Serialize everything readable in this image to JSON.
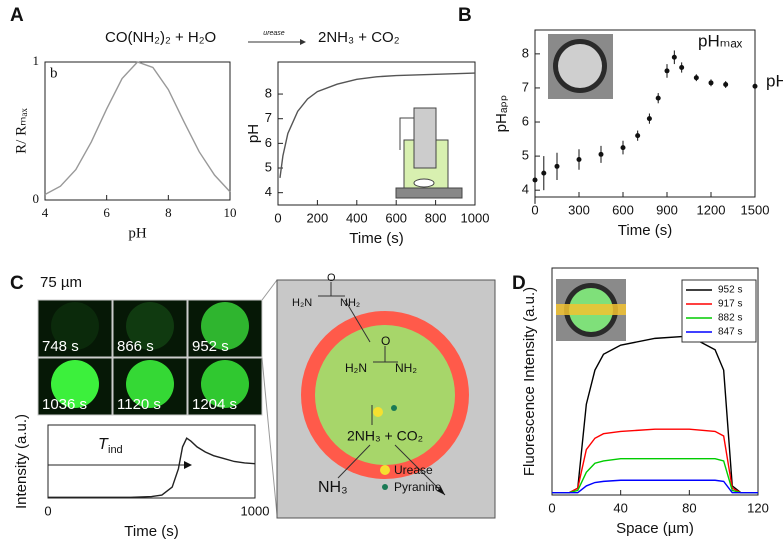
{
  "panel_labels": [
    "A",
    "B",
    "C",
    "D"
  ],
  "equation": {
    "left": "CO(NH₂)₂ + H₂O",
    "arrow": "urease",
    "right": "2NH₃  + CO₂"
  },
  "micrographs": {
    "scale_bar": "75 µm",
    "times": [
      "748 s",
      "866 s",
      "952 s",
      "1036 s",
      "1120 s",
      "1204 s"
    ]
  },
  "diagram": {
    "urea_out": [
      "H₂N",
      "O",
      "NH₂"
    ],
    "urea_in": [
      "H₂N",
      "O",
      "NH₂"
    ],
    "products": "2NH₃ + CO₂",
    "nh3": "NH₃",
    "urease": "Urease",
    "pyranine": "Pyranine"
  },
  "chart_data": [
    {
      "type": "line",
      "xlabel": "pH",
      "ylabel": "R/ Rₘₐₓ",
      "annotation": "b",
      "x": [
        4,
        4.5,
        5,
        5.5,
        6,
        6.5,
        7,
        7.5,
        8,
        8.5,
        9,
        9.5,
        10
      ],
      "series": [
        {
          "color": "#999999",
          "values": [
            0.04,
            0.1,
            0.22,
            0.42,
            0.66,
            0.88,
            1.0,
            0.96,
            0.8,
            0.57,
            0.35,
            0.18,
            0.06
          ]
        }
      ],
      "xlim": [
        4,
        10
      ],
      "xticks": [
        4,
        6,
        8,
        10
      ],
      "ylim": [
        0,
        1
      ],
      "yticks": [
        0,
        1
      ]
    },
    {
      "type": "line",
      "xlabel": "Time (s)",
      "ylabel": "pH",
      "x": [
        10,
        25,
        50,
        100,
        150,
        200,
        300,
        400,
        500,
        600,
        800,
        1000
      ],
      "series": [
        {
          "color": "#555555",
          "values": [
            4.6,
            5.5,
            6.4,
            7.3,
            7.8,
            8.1,
            8.4,
            8.6,
            8.7,
            8.75,
            8.8,
            8.85
          ]
        }
      ],
      "xlim": [
        0,
        1000
      ],
      "xticks": [
        0,
        200,
        400,
        600,
        800,
        1000
      ],
      "ylim": [
        3.5,
        9.3
      ],
      "yticks": [
        4,
        5,
        6,
        7,
        8
      ]
    },
    {
      "type": "scatter",
      "xlabel": "Time (s)",
      "ylabel": "pHₐₚₚ",
      "annotation": "pHₘₐₓ",
      "annotation2": "pH",
      "x": [
        0,
        60,
        150,
        300,
        450,
        600,
        700,
        780,
        840,
        900,
        950,
        1000,
        1100,
        1200,
        1300,
        1500
      ],
      "series": [
        {
          "color": "#111111",
          "values": [
            4.3,
            4.5,
            4.7,
            4.9,
            5.05,
            5.25,
            5.6,
            6.1,
            6.7,
            7.5,
            7.9,
            7.6,
            7.3,
            7.15,
            7.1,
            7.05
          ],
          "errors": [
            0.7,
            0.5,
            0.4,
            0.3,
            0.25,
            0.2,
            0.15,
            0.15,
            0.15,
            0.2,
            0.2,
            0.15,
            0.1,
            0.1,
            0.1,
            0.1
          ]
        }
      ],
      "xlim": [
        0,
        1500
      ],
      "xticks": [
        0,
        300,
        600,
        900,
        1200,
        1500
      ],
      "ylim": [
        3.8,
        8.7
      ],
      "yticks": [
        4,
        5,
        6,
        7,
        8
      ]
    },
    {
      "type": "line",
      "xlabel": "Time (s)",
      "ylabel": "Intensity (a.u.)",
      "annotation": {
        "main": "T",
        "sub": "ind"
      },
      "x": [
        0,
        100,
        200,
        300,
        400,
        500,
        550,
        600,
        630,
        650,
        670,
        690,
        720,
        760,
        800,
        850,
        900,
        950,
        1000
      ],
      "series": [
        {
          "color": "#222222",
          "values": [
            0.01,
            0.01,
            0.01,
            0.01,
            0.01,
            0.02,
            0.04,
            0.15,
            0.4,
            0.7,
            0.82,
            0.78,
            0.7,
            0.63,
            0.58,
            0.54,
            0.5,
            0.48,
            0.47
          ]
        }
      ],
      "xlim": [
        0,
        1000
      ],
      "xticks": [
        0,
        1000
      ],
      "ylim": [
        0,
        1
      ]
    },
    {
      "type": "line",
      "xlabel": "Space (µm)",
      "ylabel": "Fluorescence Intensity (a.u.)",
      "legend": "upper right",
      "x": [
        0,
        10,
        15,
        20,
        25,
        30,
        40,
        60,
        80,
        95,
        100,
        105,
        110,
        120
      ],
      "series": [
        {
          "name": "952 s",
          "color": "#000000",
          "values": [
            0.01,
            0.01,
            0.03,
            0.4,
            0.55,
            0.62,
            0.66,
            0.69,
            0.7,
            0.64,
            0.55,
            0.04,
            0.01,
            0.01
          ]
        },
        {
          "name": "917 s",
          "color": "#ff0000",
          "values": [
            0.01,
            0.01,
            0.03,
            0.2,
            0.25,
            0.27,
            0.28,
            0.29,
            0.29,
            0.28,
            0.26,
            0.03,
            0.01,
            0.01
          ]
        },
        {
          "name": "882 s",
          "color": "#00cc00",
          "values": [
            0.01,
            0.01,
            0.02,
            0.1,
            0.14,
            0.15,
            0.16,
            0.16,
            0.16,
            0.16,
            0.15,
            0.02,
            0.01,
            0.01
          ]
        },
        {
          "name": "847 s",
          "color": "#0000ff",
          "values": [
            0.01,
            0.01,
            0.01,
            0.04,
            0.055,
            0.06,
            0.065,
            0.065,
            0.065,
            0.065,
            0.06,
            0.01,
            0.01,
            0.01
          ]
        }
      ],
      "xlim": [
        0,
        120
      ],
      "xticks": [
        0,
        40,
        80,
        120
      ],
      "ylim": [
        0,
        1
      ]
    }
  ]
}
